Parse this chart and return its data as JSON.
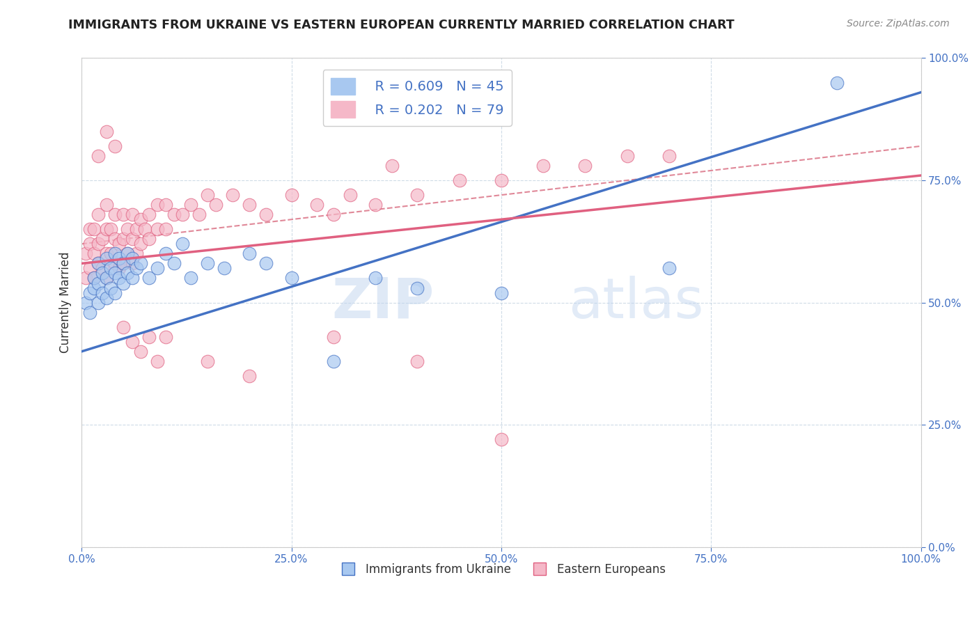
{
  "title": "IMMIGRANTS FROM UKRAINE VS EASTERN EUROPEAN CURRENTLY MARRIED CORRELATION CHART",
  "source": "Source: ZipAtlas.com",
  "xlabel": "",
  "ylabel": "Currently Married",
  "xlim": [
    0,
    1
  ],
  "ylim": [
    0,
    1
  ],
  "xticks": [
    0,
    0.25,
    0.5,
    0.75,
    1.0
  ],
  "yticks": [
    0,
    0.25,
    0.5,
    0.75,
    1.0
  ],
  "xticklabels": [
    "0.0%",
    "25.0%",
    "50.0%",
    "75.0%",
    "100.0%"
  ],
  "yticklabels": [
    "0.0%",
    "25.0%",
    "50.0%",
    "75.0%",
    "100.0%"
  ],
  "legend_labels": [
    "Immigrants from Ukraine",
    "Eastern Europeans"
  ],
  "R_ukraine": 0.609,
  "N_ukraine": 45,
  "R_eastern": 0.202,
  "N_eastern": 79,
  "blue_color": "#A8C8F0",
  "pink_color": "#F5B8C8",
  "blue_line_color": "#4472C4",
  "pink_line_color": "#E06080",
  "dashed_line_color": "#E08898",
  "watermark_zip": "ZIP",
  "watermark_atlas": "atlas",
  "ukraine_x": [
    0.005,
    0.01,
    0.01,
    0.015,
    0.015,
    0.02,
    0.02,
    0.02,
    0.025,
    0.025,
    0.03,
    0.03,
    0.03,
    0.035,
    0.035,
    0.04,
    0.04,
    0.04,
    0.045,
    0.045,
    0.05,
    0.05,
    0.055,
    0.055,
    0.06,
    0.06,
    0.065,
    0.07,
    0.08,
    0.09,
    0.1,
    0.11,
    0.12,
    0.13,
    0.15,
    0.17,
    0.2,
    0.22,
    0.25,
    0.3,
    0.35,
    0.4,
    0.5,
    0.7,
    0.9
  ],
  "ukraine_y": [
    0.5,
    0.52,
    0.48,
    0.53,
    0.55,
    0.5,
    0.54,
    0.58,
    0.52,
    0.56,
    0.51,
    0.55,
    0.59,
    0.53,
    0.57,
    0.52,
    0.56,
    0.6,
    0.55,
    0.59,
    0.54,
    0.58,
    0.56,
    0.6,
    0.55,
    0.59,
    0.57,
    0.58,
    0.55,
    0.57,
    0.6,
    0.58,
    0.62,
    0.55,
    0.58,
    0.57,
    0.6,
    0.58,
    0.55,
    0.38,
    0.55,
    0.53,
    0.52,
    0.57,
    0.95
  ],
  "eastern_x": [
    0.005,
    0.005,
    0.01,
    0.01,
    0.01,
    0.015,
    0.015,
    0.015,
    0.02,
    0.02,
    0.02,
    0.025,
    0.025,
    0.03,
    0.03,
    0.03,
    0.03,
    0.035,
    0.035,
    0.04,
    0.04,
    0.04,
    0.045,
    0.045,
    0.05,
    0.05,
    0.05,
    0.055,
    0.055,
    0.06,
    0.06,
    0.06,
    0.065,
    0.065,
    0.07,
    0.07,
    0.075,
    0.08,
    0.08,
    0.09,
    0.09,
    0.1,
    0.1,
    0.11,
    0.12,
    0.13,
    0.14,
    0.15,
    0.16,
    0.18,
    0.2,
    0.22,
    0.25,
    0.28,
    0.3,
    0.32,
    0.35,
    0.37,
    0.4,
    0.45,
    0.5,
    0.55,
    0.6,
    0.65,
    0.7,
    0.02,
    0.03,
    0.04,
    0.05,
    0.06,
    0.07,
    0.08,
    0.09,
    0.1,
    0.15,
    0.2,
    0.3,
    0.4,
    0.5
  ],
  "eastern_y": [
    0.55,
    0.6,
    0.57,
    0.62,
    0.65,
    0.55,
    0.6,
    0.65,
    0.58,
    0.62,
    0.68,
    0.57,
    0.63,
    0.55,
    0.6,
    0.65,
    0.7,
    0.6,
    0.65,
    0.58,
    0.63,
    0.68,
    0.57,
    0.62,
    0.58,
    0.63,
    0.68,
    0.6,
    0.65,
    0.58,
    0.63,
    0.68,
    0.6,
    0.65,
    0.62,
    0.67,
    0.65,
    0.63,
    0.68,
    0.65,
    0.7,
    0.65,
    0.7,
    0.68,
    0.68,
    0.7,
    0.68,
    0.72,
    0.7,
    0.72,
    0.7,
    0.68,
    0.72,
    0.7,
    0.68,
    0.72,
    0.7,
    0.78,
    0.72,
    0.75,
    0.75,
    0.78,
    0.78,
    0.8,
    0.8,
    0.8,
    0.85,
    0.82,
    0.45,
    0.42,
    0.4,
    0.43,
    0.38,
    0.43,
    0.38,
    0.35,
    0.43,
    0.38,
    0.22
  ]
}
